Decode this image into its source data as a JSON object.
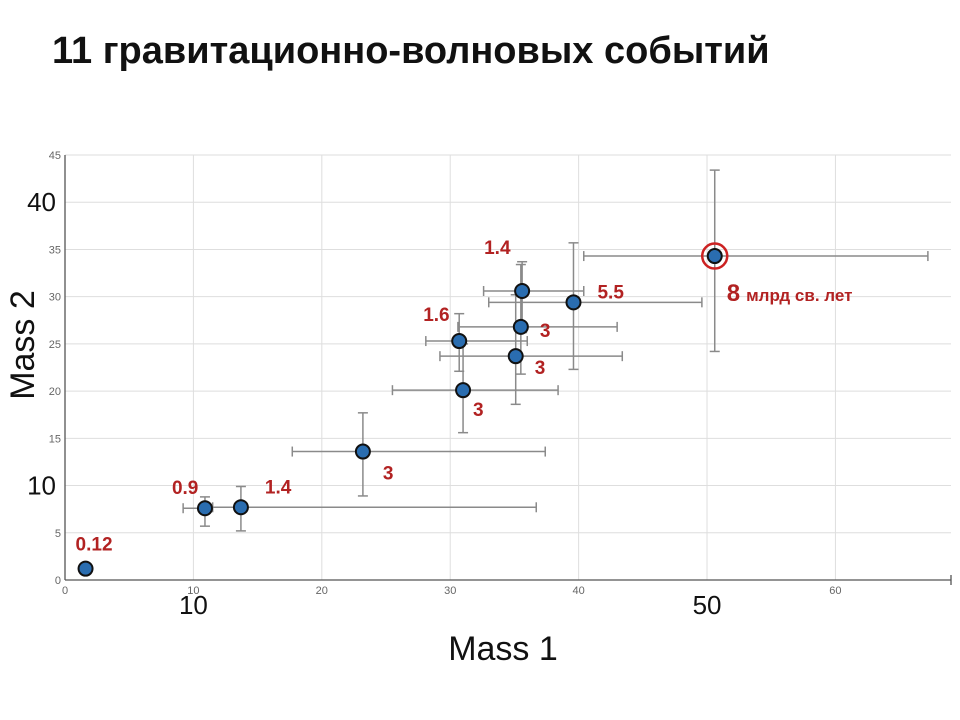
{
  "title": "11 гравитационно-волновых событий",
  "chart_data": {
    "type": "scatter",
    "xlabel": "Mass 1",
    "ylabel": "Mass 2",
    "xlim": [
      0,
      69
    ],
    "ylim": [
      0,
      45
    ],
    "x_ticks": [
      0,
      10,
      20,
      30,
      40,
      60
    ],
    "x_ticks_big": [
      10,
      50
    ],
    "y_ticks": [
      0,
      5,
      15,
      20,
      25,
      30,
      35,
      45
    ],
    "y_ticks_big": [
      10,
      40
    ],
    "grid": true,
    "marker_color": "#2a6db0",
    "annotation_color": "#b22222",
    "highlight_color": "#cc2222",
    "points": [
      {
        "x": 1.6,
        "y": 1.2,
        "xerr": [
          0,
          0
        ],
        "yerr": [
          0,
          0
        ],
        "label": "0.12"
      },
      {
        "x": 10.9,
        "y": 7.6,
        "xerr": [
          1.7,
          0
        ],
        "yerr": [
          1.9,
          1.2
        ],
        "label": "0.9"
      },
      {
        "x": 13.7,
        "y": 7.7,
        "xerr": [
          2.2,
          23
        ],
        "yerr": [
          2.5,
          2.2
        ],
        "label": "1.4"
      },
      {
        "x": 23.2,
        "y": 13.6,
        "xerr": [
          5.5,
          14.2
        ],
        "yerr": [
          4.7,
          4.1
        ],
        "label": "3"
      },
      {
        "x": 31.0,
        "y": 20.1,
        "xerr": [
          5.5,
          7.4
        ],
        "yerr": [
          4.5,
          4.9
        ],
        "label": "3"
      },
      {
        "x": 30.7,
        "y": 25.3,
        "xerr": [
          2.6,
          5.3
        ],
        "yerr": [
          3.2,
          2.9
        ],
        "label": "1.6"
      },
      {
        "x": 35.1,
        "y": 23.7,
        "xerr": [
          5.9,
          8.3
        ],
        "yerr": [
          5.1,
          6.5
        ],
        "label": "3"
      },
      {
        "x": 35.5,
        "y": 26.8,
        "xerr": [
          4.9,
          7.5
        ],
        "yerr": [
          5.0,
          6.6
        ],
        "label": "3"
      },
      {
        "x": 35.6,
        "y": 30.6,
        "xerr": [
          3.0,
          4.8
        ],
        "yerr": [
          4.4,
          3.1
        ],
        "label": "1.4"
      },
      {
        "x": 39.6,
        "y": 29.4,
        "xerr": [
          6.6,
          10.0
        ],
        "yerr": [
          7.1,
          6.3
        ],
        "label": "5.5"
      },
      {
        "x": 50.6,
        "y": 34.3,
        "xerr": [
          10.2,
          16.6
        ],
        "yerr": [
          10.1,
          9.1
        ],
        "label": "8",
        "label_suffix": "млрд св. лет",
        "highlight": true
      }
    ]
  }
}
